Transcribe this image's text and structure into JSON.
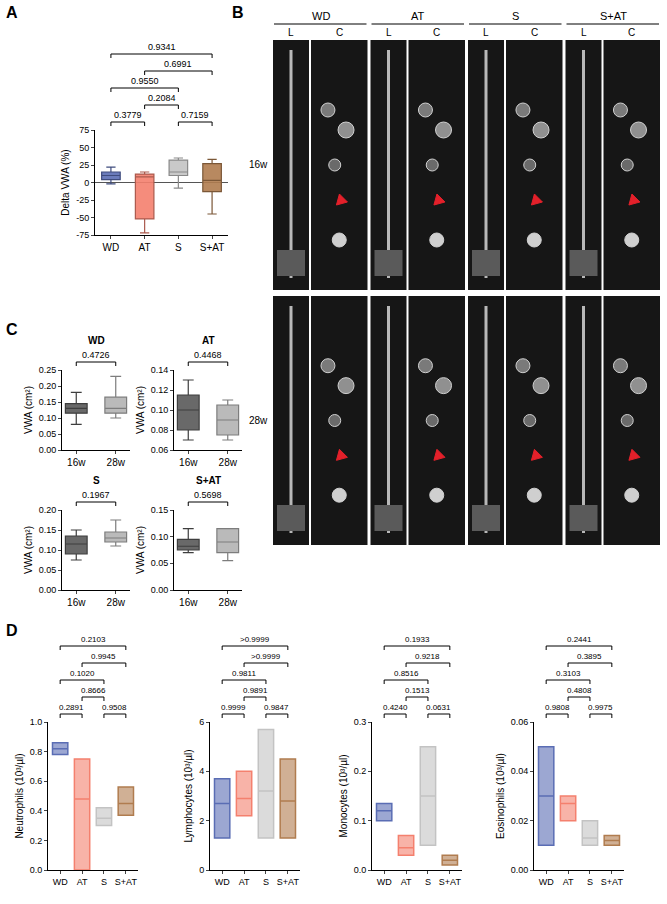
{
  "panel_labels": [
    "A",
    "B",
    "C",
    "D"
  ],
  "image_panel": {
    "groups": [
      "WD",
      "AT",
      "S",
      "S+AT"
    ],
    "views": [
      "L",
      "C"
    ],
    "timepoints": [
      "16w",
      "28w"
    ]
  },
  "chart_data": [
    {
      "type": "box",
      "y_label": "Delta VWA (%)",
      "categories": [
        "WD",
        "AT",
        "S",
        "S+AT"
      ],
      "colors": [
        "#5a6db4",
        "#f4806e",
        "#c3c3c3",
        "#b07c4f"
      ],
      "ylim": [
        -75,
        75
      ],
      "yticks": [
        -75,
        -50,
        -25,
        0,
        25,
        50,
        75
      ],
      "boxes": [
        {
          "lower": -2,
          "q1": 4,
          "median": 10,
          "q3": 15,
          "upper": 22
        },
        {
          "lower": -72,
          "q1": -52,
          "median": 8,
          "q3": 12,
          "upper": 15
        },
        {
          "lower": -8,
          "q1": 10,
          "median": 15,
          "q3": 32,
          "upper": 35
        },
        {
          "lower": -45,
          "q1": -13,
          "median": 3,
          "q3": 27,
          "upper": 33
        }
      ],
      "comparisons": [
        {
          "pair": [
            "WD",
            "AT"
          ],
          "label": "0.3779"
        },
        {
          "pair": [
            "S",
            "S+AT"
          ],
          "label": "0.7159"
        },
        {
          "pair": [
            "AT",
            "S"
          ],
          "label": "0.2084"
        },
        {
          "pair": [
            "WD",
            "S"
          ],
          "label": "0.9550"
        },
        {
          "pair": [
            "AT",
            "S+AT"
          ],
          "label": "0.6991"
        },
        {
          "pair": [
            "WD",
            "S+AT"
          ],
          "label": "0.9341"
        }
      ]
    },
    {
      "type": "box",
      "title": "WD",
      "y_label": "VWA (cm²)",
      "categories": [
        "16w",
        "28w"
      ],
      "colors": [
        "#595959",
        "#b3b3b3"
      ],
      "ylim": [
        0,
        0.25
      ],
      "yticks": [
        {
          "value": 0,
          "label": "0.00"
        },
        0.05,
        {
          "value": 0.1,
          "label": "0.10"
        },
        0.15,
        {
          "value": 0.2,
          "label": "0.20"
        },
        0.25
      ],
      "boxes": [
        {
          "lower": 0.08,
          "q1": 0.115,
          "median": 0.13,
          "q3": 0.145,
          "upper": 0.18
        },
        {
          "lower": 0.1,
          "q1": 0.115,
          "median": 0.13,
          "q3": 0.165,
          "upper": 0.23
        }
      ],
      "comparisons": [
        {
          "pair": [
            "16w",
            "28w"
          ],
          "label": "0.4726"
        }
      ]
    },
    {
      "type": "box",
      "title": "AT",
      "y_label": "VWA (cm²)",
      "categories": [
        "16w",
        "28w"
      ],
      "colors": [
        "#595959",
        "#b3b3b3"
      ],
      "ylim": [
        0.06,
        0.14
      ],
      "yticks": [
        0.06,
        0.08,
        {
          "value": 0.1,
          "label": "0.10"
        },
        0.12,
        0.14
      ],
      "boxes": [
        {
          "lower": 0.07,
          "q1": 0.08,
          "median": 0.1,
          "q3": 0.115,
          "upper": 0.13
        },
        {
          "lower": 0.07,
          "q1": 0.075,
          "median": 0.09,
          "q3": 0.105,
          "upper": 0.11
        }
      ],
      "comparisons": [
        {
          "pair": [
            "16w",
            "28w"
          ],
          "label": "0.4468"
        }
      ]
    },
    {
      "type": "box",
      "title": "S",
      "y_label": "VWA (cm²)",
      "categories": [
        "16w",
        "28w"
      ],
      "colors": [
        "#595959",
        "#b3b3b3"
      ],
      "ylim": [
        0,
        0.2
      ],
      "yticks": [
        {
          "value": 0,
          "label": "0.00"
        },
        0.05,
        {
          "value": 0.1,
          "label": "0.10"
        },
        0.15,
        {
          "value": 0.2,
          "label": "0.20"
        }
      ],
      "boxes": [
        {
          "lower": 0.075,
          "q1": 0.09,
          "median": 0.115,
          "q3": 0.135,
          "upper": 0.15
        },
        {
          "lower": 0.11,
          "q1": 0.12,
          "median": 0.13,
          "q3": 0.145,
          "upper": 0.175
        }
      ],
      "comparisons": [
        {
          "pair": [
            "16w",
            "28w"
          ],
          "label": "0.1967"
        }
      ]
    },
    {
      "type": "box",
      "title": "S+AT",
      "y_label": "VWA (cm²)",
      "categories": [
        "16w",
        "28w"
      ],
      "colors": [
        "#595959",
        "#b3b3b3"
      ],
      "ylim": [
        0,
        0.15
      ],
      "yticks": [
        {
          "value": 0,
          "label": "0.00"
        },
        0.05,
        {
          "value": 0.1,
          "label": "0.10"
        },
        0.15
      ],
      "boxes": [
        {
          "lower": 0.07,
          "q1": 0.075,
          "median": 0.082,
          "q3": 0.095,
          "upper": 0.115
        },
        {
          "lower": 0.055,
          "q1": 0.07,
          "median": 0.09,
          "q3": 0.115,
          "upper": 0.115
        }
      ],
      "comparisons": [
        {
          "pair": [
            "16w",
            "28w"
          ],
          "label": "0.5698"
        }
      ]
    },
    {
      "type": "floating_bar",
      "y_label": "Neutrophils (10³/µl)",
      "categories": [
        "WD",
        "AT",
        "S",
        "S+AT"
      ],
      "colors": [
        "#5a6db4",
        "#f4806e",
        "#c3c3c3",
        "#b07c4f"
      ],
      "ylim": [
        0,
        1
      ],
      "yticks": [
        {
          "value": 0,
          "label": "0.0"
        },
        0.2,
        0.4,
        0.6,
        0.8,
        {
          "value": 1,
          "label": "1.0"
        }
      ],
      "bars": [
        {
          "min": 0.78,
          "median": 0.82,
          "max": 0.86
        },
        {
          "min": 0,
          "median": 0.48,
          "max": 0.75
        },
        {
          "min": 0.3,
          "median": 0.35,
          "max": 0.42
        },
        {
          "min": 0.37,
          "median": 0.45,
          "max": 0.56
        }
      ],
      "comparisons": [
        {
          "pair": [
            "WD",
            "AT"
          ],
          "label": "0.2891"
        },
        {
          "pair": [
            "S",
            "S+AT"
          ],
          "label": "0.9508"
        },
        {
          "pair": [
            "AT",
            "S"
          ],
          "label": "0.8666"
        },
        {
          "pair": [
            "WD",
            "S"
          ],
          "label": "0.1020"
        },
        {
          "pair": [
            "AT",
            "S+AT"
          ],
          "label": "0.9945"
        },
        {
          "pair": [
            "WD",
            "S+AT"
          ],
          "label": "0.2103"
        }
      ]
    },
    {
      "type": "floating_bar",
      "y_label": "Lymphocytes (10³/µl)",
      "categories": [
        "WD",
        "AT",
        "S",
        "S+AT"
      ],
      "colors": [
        "#5a6db4",
        "#f4806e",
        "#c3c3c3",
        "#b07c4f"
      ],
      "ylim": [
        0,
        6
      ],
      "yticks": [
        0,
        2,
        4,
        6
      ],
      "bars": [
        {
          "min": 1.3,
          "median": 2.7,
          "max": 3.7
        },
        {
          "min": 2.2,
          "median": 2.9,
          "max": 4.0
        },
        {
          "min": 1.3,
          "median": 3.2,
          "max": 5.7
        },
        {
          "min": 1.3,
          "median": 2.8,
          "max": 4.5
        }
      ],
      "comparisons": [
        {
          "pair": [
            "WD",
            "AT"
          ],
          "label": "0.9999"
        },
        {
          "pair": [
            "S",
            "S+AT"
          ],
          "label": "0.9847"
        },
        {
          "pair": [
            "AT",
            "S"
          ],
          "label": "0.9891"
        },
        {
          "pair": [
            "WD",
            "S"
          ],
          "label": "0.9811"
        },
        {
          "pair": [
            "AT",
            "S+AT"
          ],
          "label": ">0.9999"
        },
        {
          "pair": [
            "WD",
            "S+AT"
          ],
          "label": ">0.9999"
        }
      ]
    },
    {
      "type": "floating_bar",
      "y_label": "Monocytes (10³/µl)",
      "categories": [
        "WD",
        "AT",
        "S",
        "S+AT"
      ],
      "colors": [
        "#5a6db4",
        "#f4806e",
        "#c3c3c3",
        "#b07c4f"
      ],
      "ylim": [
        0,
        0.3
      ],
      "yticks": [
        {
          "value": 0,
          "label": "0.0"
        },
        0.1,
        0.2,
        0.3
      ],
      "bars": [
        {
          "min": 0.1,
          "median": 0.12,
          "max": 0.135
        },
        {
          "min": 0.03,
          "median": 0.045,
          "max": 0.07
        },
        {
          "min": 0.05,
          "median": 0.15,
          "max": 0.25
        },
        {
          "min": 0.01,
          "median": 0.02,
          "max": 0.03
        }
      ],
      "comparisons": [
        {
          "pair": [
            "WD",
            "AT"
          ],
          "label": "0.4240"
        },
        {
          "pair": [
            "S",
            "S+AT"
          ],
          "label": "0.0631"
        },
        {
          "pair": [
            "AT",
            "S"
          ],
          "label": "0.1513"
        },
        {
          "pair": [
            "WD",
            "S"
          ],
          "label": "0.8516"
        },
        {
          "pair": [
            "AT",
            "S+AT"
          ],
          "label": "0.9218"
        },
        {
          "pair": [
            "WD",
            "S+AT"
          ],
          "label": "0.1933"
        }
      ]
    },
    {
      "type": "floating_bar",
      "y_label": "Eosinophils (10³/µl)",
      "categories": [
        "WD",
        "AT",
        "S",
        "S+AT"
      ],
      "colors": [
        "#5a6db4",
        "#f4806e",
        "#c3c3c3",
        "#b07c4f"
      ],
      "ylim": [
        0,
        0.06
      ],
      "yticks": [
        {
          "value": 0,
          "label": "0.00"
        },
        0.02,
        0.04,
        0.06
      ],
      "bars": [
        {
          "min": 0.01,
          "median": 0.03,
          "max": 0.05
        },
        {
          "min": 0.02,
          "median": 0.027,
          "max": 0.03
        },
        {
          "min": 0.01,
          "median": 0.013,
          "max": 0.02
        },
        {
          "min": 0.01,
          "median": 0.012,
          "max": 0.014
        }
      ],
      "comparisons": [
        {
          "pair": [
            "WD",
            "AT"
          ],
          "label": "0.9808"
        },
        {
          "pair": [
            "S",
            "S+AT"
          ],
          "label": "0.9975"
        },
        {
          "pair": [
            "AT",
            "S"
          ],
          "label": "0.4808"
        },
        {
          "pair": [
            "WD",
            "S"
          ],
          "label": "0.3103"
        },
        {
          "pair": [
            "AT",
            "S+AT"
          ],
          "label": "0.3895"
        },
        {
          "pair": [
            "WD",
            "S+AT"
          ],
          "label": "0.2441"
        }
      ]
    }
  ]
}
